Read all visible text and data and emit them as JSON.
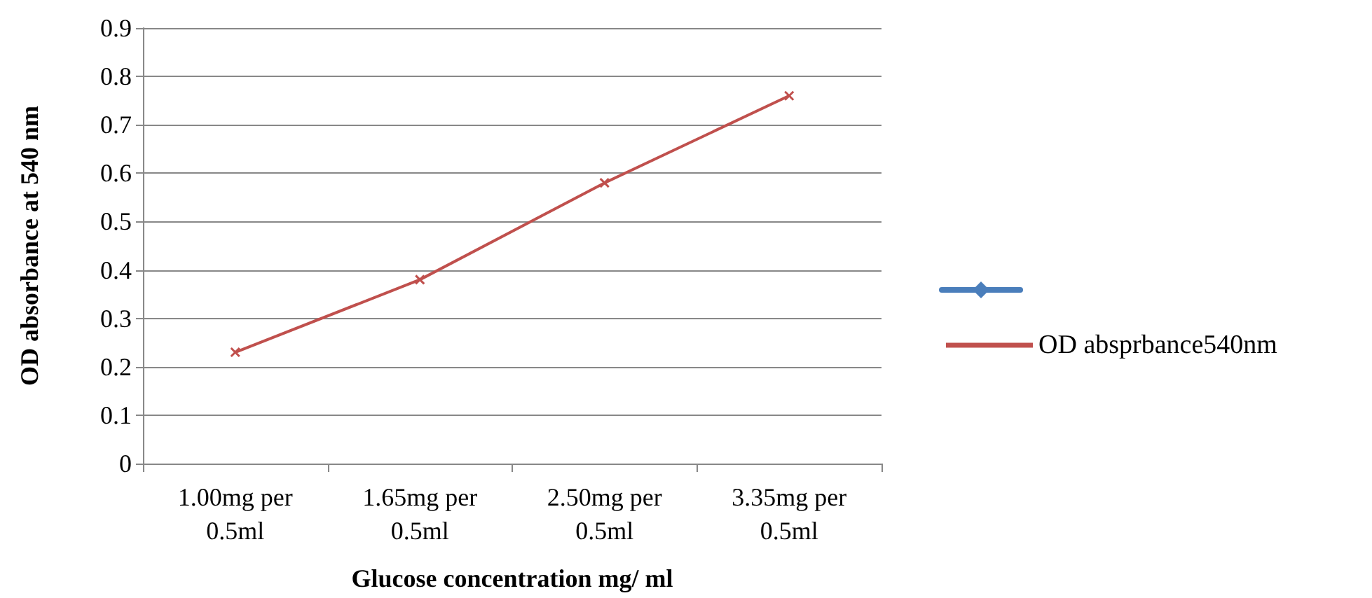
{
  "chart_data": {
    "type": "line",
    "xlabel": "Glucose concentration mg/ ml",
    "ylabel": "OD absorbance at 540 nm",
    "categories": [
      "1.00mg per\n0.5ml",
      "1.65mg per\n0.5ml",
      "2.50mg per\n0.5ml",
      "3.35mg per\n0.5ml"
    ],
    "series": [
      {
        "color": "#4a7ebb",
        "marker": "diamond",
        "values": [
          null,
          null,
          null,
          null
        ]
      },
      {
        "name": "OD absprbance540nm",
        "color": "#c0504d",
        "marker": "cross",
        "values": [
          0.23,
          0.38,
          0.58,
          0.76
        ]
      }
    ],
    "ylim": [
      0,
      0.9
    ],
    "yticks": [
      0,
      0.1,
      0.2,
      0.3,
      0.4,
      0.5,
      0.6,
      0.7,
      0.8,
      0.9
    ],
    "grid": "y",
    "legend": "right"
  }
}
